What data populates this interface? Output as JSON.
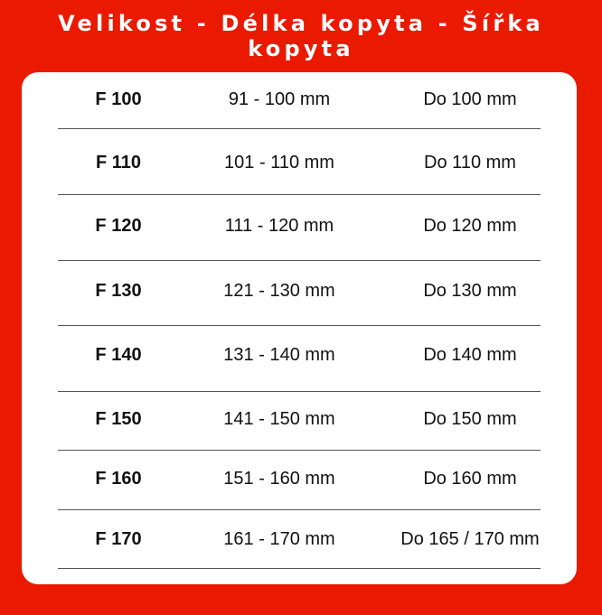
{
  "title": "Velikost - Délka kopyta - Šířka kopyta",
  "rows": [
    {
      "size": "F 100",
      "length": "91 - 100 mm",
      "width": "Do 100 mm"
    },
    {
      "size": "F 110",
      "length": "101 - 110 mm",
      "width": "Do 110 mm"
    },
    {
      "size": "F 120",
      "length": "111 - 120 mm",
      "width": "Do 120 mm"
    },
    {
      "size": "F 130",
      "length": "121 - 130 mm",
      "width": "Do 130 mm"
    },
    {
      "size": "F 140",
      "length": "131 - 140 mm",
      "width": "Do 140 mm"
    },
    {
      "size": "F 150",
      "length": "141 - 150 mm",
      "width": "Do 150 mm"
    },
    {
      "size": "F 160",
      "length": "151 - 160 mm",
      "width": "Do 160 mm"
    },
    {
      "size": "F 170",
      "length": "161 - 170 mm",
      "width": "Do 165 / 170 mm"
    }
  ],
  "colors": {
    "background": "#ea1a00",
    "card": "#ffffff"
  }
}
